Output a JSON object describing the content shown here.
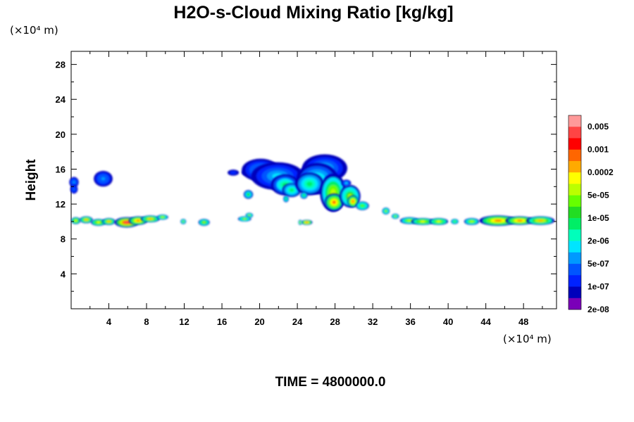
{
  "chart_data": {
    "type": "heatmap",
    "title": "H2O-s-Cloud Mixing Ratio [kg/kg]",
    "ylabel": "Height",
    "xlabel": "",
    "y_unit": "(×10⁴ m)",
    "x_unit": "(×10⁴ m)",
    "time_label": "TIME = 4800000.0",
    "xlim": [
      0,
      51.5
    ],
    "ylim": [
      0,
      29.5
    ],
    "x_ticks": [
      4,
      8,
      12,
      16,
      20,
      24,
      28,
      32,
      36,
      40,
      44,
      48
    ],
    "x_tick_labels": [
      "4",
      "8",
      "12",
      "16",
      "20",
      "24",
      "28",
      "32",
      "36",
      "40",
      "44",
      "48"
    ],
    "y_ticks": [
      4,
      8,
      12,
      16,
      20,
      24,
      28
    ],
    "y_tick_labels": [
      "4",
      "8",
      "12",
      "16",
      "20",
      "24",
      "28"
    ],
    "grid": false,
    "legend_position": "right",
    "colorbar": {
      "labels": [
        "0.005",
        "0.001",
        "0.0002",
        "5e-05",
        "1e-05",
        "2e-06",
        "5e-07",
        "1e-07",
        "2e-08"
      ],
      "colors": [
        "#ff9999",
        "#ff4444",
        "#ff0000",
        "#ff6600",
        "#ffaa00",
        "#ffff00",
        "#bbff00",
        "#66ff00",
        "#22dd22",
        "#00ee66",
        "#00ffbb",
        "#00e5ff",
        "#0099ff",
        "#0055ff",
        "#0022ff",
        "#0000bb",
        "#7a00b8"
      ]
    },
    "cloud_regions": [
      {
        "x": 0.3,
        "y": 14.5,
        "w": 0.5,
        "h": 0.6,
        "level": 0.25
      },
      {
        "x": 0.3,
        "y": 13.7,
        "w": 0.4,
        "h": 0.5,
        "level": 0.2
      },
      {
        "x": 3.4,
        "y": 14.9,
        "w": 1.0,
        "h": 0.9,
        "level": 0.25
      },
      {
        "x": 17.2,
        "y": 15.6,
        "w": 0.6,
        "h": 0.35,
        "level": 0.15
      },
      {
        "x": 18.6,
        "y": 15.6,
        "w": 0.5,
        "h": 0.35,
        "level": 0.15
      },
      {
        "x": 20.1,
        "y": 15.9,
        "w": 2.0,
        "h": 1.3,
        "level": 0.25
      },
      {
        "x": 21.9,
        "y": 15.2,
        "w": 2.8,
        "h": 1.6,
        "level": 0.3
      },
      {
        "x": 22.7,
        "y": 14.2,
        "w": 1.5,
        "h": 1.2,
        "level": 0.42
      },
      {
        "x": 23.4,
        "y": 13.6,
        "w": 1.0,
        "h": 0.8,
        "level": 0.45
      },
      {
        "x": 26.9,
        "y": 16.1,
        "w": 2.4,
        "h": 1.6,
        "level": 0.28
      },
      {
        "x": 26.1,
        "y": 14.9,
        "w": 2.2,
        "h": 1.8,
        "level": 0.4
      },
      {
        "x": 25.3,
        "y": 14.3,
        "w": 1.5,
        "h": 1.3,
        "level": 0.45
      },
      {
        "x": 27.8,
        "y": 13.3,
        "w": 1.4,
        "h": 2.2,
        "level": 0.65
      },
      {
        "x": 27.9,
        "y": 12.2,
        "w": 1.0,
        "h": 1.0,
        "level": 0.8
      },
      {
        "x": 29.6,
        "y": 12.9,
        "w": 1.1,
        "h": 1.3,
        "level": 0.6
      },
      {
        "x": 29.9,
        "y": 12.3,
        "w": 0.6,
        "h": 0.7,
        "level": 0.8
      },
      {
        "x": 30.9,
        "y": 11.8,
        "w": 0.7,
        "h": 0.5,
        "level": 0.55
      },
      {
        "x": 29.2,
        "y": 14.4,
        "w": 0.5,
        "h": 0.4,
        "level": 0.3
      },
      {
        "x": 18.8,
        "y": 13.1,
        "w": 0.5,
        "h": 0.5,
        "level": 0.5
      },
      {
        "x": 22.8,
        "y": 12.6,
        "w": 0.3,
        "h": 0.4,
        "level": 0.5
      },
      {
        "x": 24.7,
        "y": 13.0,
        "w": 0.4,
        "h": 0.4,
        "level": 0.5
      },
      {
        "x": 33.4,
        "y": 11.2,
        "w": 0.4,
        "h": 0.4,
        "level": 0.6
      },
      {
        "x": 34.4,
        "y": 10.6,
        "w": 0.4,
        "h": 0.3,
        "level": 0.6
      },
      {
        "x": 18.9,
        "y": 10.7,
        "w": 0.4,
        "h": 0.3,
        "level": 0.6
      },
      {
        "x": 18.4,
        "y": 10.3,
        "w": 0.7,
        "h": 0.3,
        "level": 0.6
      },
      {
        "x": 0.5,
        "y": 10.1,
        "w": 0.5,
        "h": 0.4,
        "level": 0.7
      },
      {
        "x": 1.6,
        "y": 10.2,
        "w": 0.7,
        "h": 0.4,
        "level": 0.75
      },
      {
        "x": 2.9,
        "y": 9.9,
        "w": 0.8,
        "h": 0.4,
        "level": 0.7
      },
      {
        "x": 4.0,
        "y": 10.0,
        "w": 0.7,
        "h": 0.4,
        "level": 0.72
      },
      {
        "x": 5.9,
        "y": 9.9,
        "w": 1.3,
        "h": 0.6,
        "level": 0.95
      },
      {
        "x": 7.1,
        "y": 10.1,
        "w": 1.0,
        "h": 0.5,
        "level": 0.8
      },
      {
        "x": 8.4,
        "y": 10.3,
        "w": 1.0,
        "h": 0.4,
        "level": 0.75
      },
      {
        "x": 9.7,
        "y": 10.5,
        "w": 0.6,
        "h": 0.3,
        "level": 0.65
      },
      {
        "x": 11.9,
        "y": 10.0,
        "w": 0.3,
        "h": 0.3,
        "level": 0.6
      },
      {
        "x": 14.1,
        "y": 9.9,
        "w": 0.6,
        "h": 0.4,
        "level": 0.62
      },
      {
        "x": 25.0,
        "y": 9.9,
        "w": 0.6,
        "h": 0.3,
        "level": 0.85
      },
      {
        "x": 24.3,
        "y": 9.9,
        "w": 0.2,
        "h": 0.3,
        "level": 0.65
      },
      {
        "x": 35.9,
        "y": 10.1,
        "w": 1.0,
        "h": 0.4,
        "level": 0.65
      },
      {
        "x": 37.3,
        "y": 10.0,
        "w": 1.2,
        "h": 0.4,
        "level": 0.7
      },
      {
        "x": 39.0,
        "y": 10.0,
        "w": 1.0,
        "h": 0.4,
        "level": 0.68
      },
      {
        "x": 40.7,
        "y": 10.0,
        "w": 0.4,
        "h": 0.3,
        "level": 0.55
      },
      {
        "x": 42.5,
        "y": 10.0,
        "w": 0.8,
        "h": 0.4,
        "level": 0.65
      },
      {
        "x": 45.3,
        "y": 10.1,
        "w": 2.0,
        "h": 0.6,
        "level": 0.8
      },
      {
        "x": 47.6,
        "y": 10.1,
        "w": 1.5,
        "h": 0.5,
        "level": 0.8
      },
      {
        "x": 49.8,
        "y": 10.1,
        "w": 1.5,
        "h": 0.5,
        "level": 0.75
      }
    ]
  }
}
